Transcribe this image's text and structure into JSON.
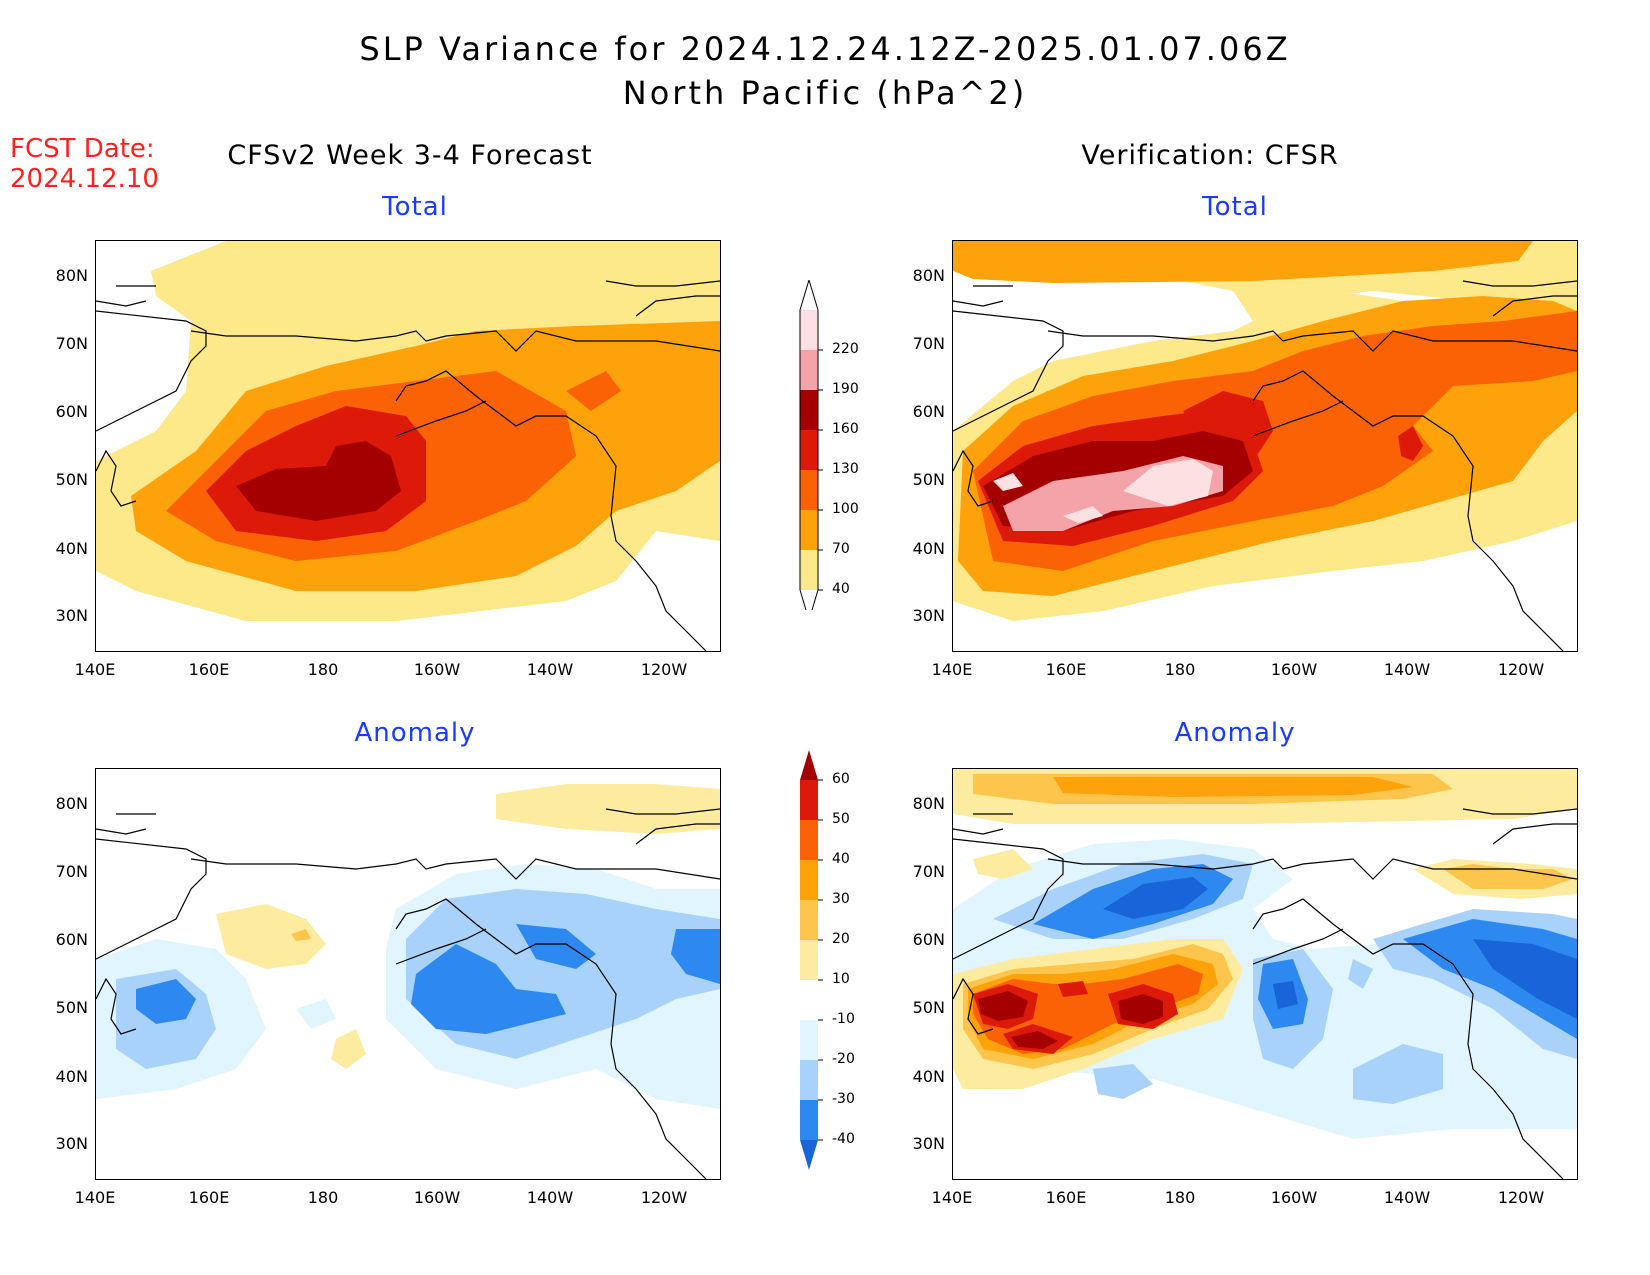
{
  "title_line1": "SLP Variance for 2024.12.24.12Z-2025.01.07.06Z",
  "title_line2": "North Pacific (hPa^2)",
  "fcst_label": "FCST Date:",
  "fcst_date": "2024.12.10",
  "left_column_title": "CFSv2 Week 3-4 Forecast",
  "right_column_title": "Verification: CFSR",
  "panels": {
    "fc_total": {
      "subtitle": "Total"
    },
    "ver_total": {
      "subtitle": "Total"
    },
    "fc_anom": {
      "subtitle": "Anomaly"
    },
    "ver_anom": {
      "subtitle": "Anomaly"
    }
  },
  "lat_labels": [
    "80N",
    "70N",
    "60N",
    "50N",
    "40N",
    "30N"
  ],
  "lon_labels": [
    "140E",
    "160E",
    "180",
    "160W",
    "140W",
    "120W"
  ],
  "total_colorbar": {
    "levels": [
      "40",
      "70",
      "100",
      "130",
      "160",
      "190",
      "220"
    ],
    "colors": [
      "#fde88a",
      "#fda20a",
      "#fb6205",
      "#dd1a0a",
      "#a50000",
      "#f4a3a8",
      "#fde0e2"
    ]
  },
  "anomaly_colorbar": {
    "levels": [
      "-40",
      "-30",
      "-20",
      "-10",
      "10",
      "20",
      "30",
      "40",
      "50",
      "60"
    ],
    "colors": [
      "#1765d8",
      "#2d89ef",
      "#a8d2fa",
      "#e1f5fe",
      "#ffffff",
      "#fdeca0",
      "#fdc54b",
      "#fda20a",
      "#fb6205",
      "#dd1a0a",
      "#a50000"
    ]
  }
}
